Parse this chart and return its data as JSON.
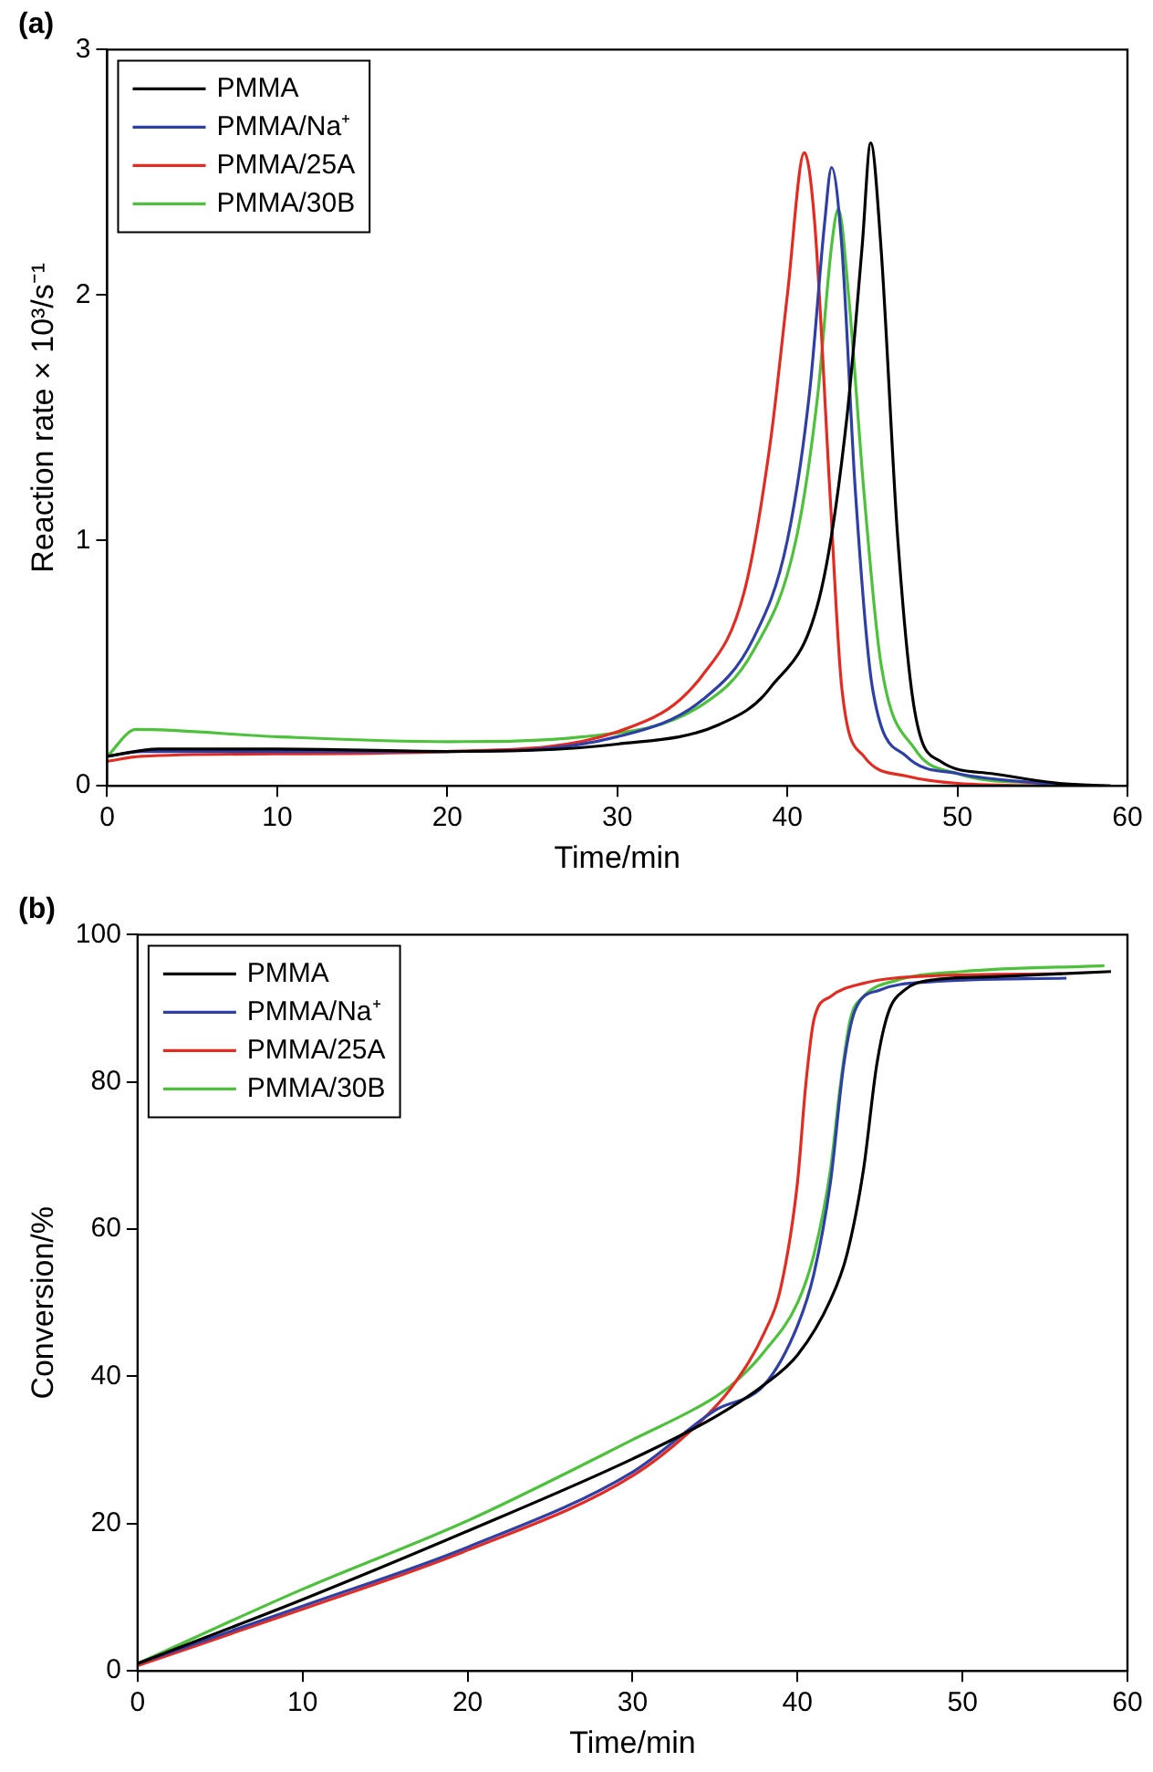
{
  "chart_data": [
    {
      "type": "line",
      "title": "(a)",
      "xlabel": "Time/min",
      "ylabel": "Reaction rate × 10³/s⁻¹",
      "xlim": [
        0,
        60
      ],
      "xticks": [
        0,
        10,
        20,
        30,
        40,
        50,
        60
      ],
      "ylim": [
        0,
        3
      ],
      "yticks": [
        0,
        1,
        2,
        3
      ],
      "grid": false,
      "legend": "top left",
      "marker": "none",
      "line_style": "solid",
      "series": [
        {
          "name": "PMMA",
          "color": "#000000",
          "x": [
            0,
            3,
            10,
            20,
            30,
            36,
            39,
            42,
            43.5,
            44.4,
            44.9,
            45.5,
            46.5,
            47.5,
            49,
            52,
            56,
            59
          ],
          "values": [
            0.12,
            0.15,
            0.15,
            0.14,
            0.17,
            0.25,
            0.4,
            0.8,
            1.5,
            2.2,
            2.62,
            2.2,
            1.0,
            0.3,
            0.1,
            0.05,
            0.01,
            0
          ]
        },
        {
          "name": "PMMA/Na⁺",
          "color": "#2e3fa8",
          "x": [
            0,
            2,
            10,
            20,
            30,
            35,
            38,
            40,
            41.3,
            42.2,
            42.6,
            43.2,
            44,
            45,
            47,
            50,
            55,
            57
          ],
          "values": [
            0.12,
            0.14,
            0.14,
            0.14,
            0.2,
            0.35,
            0.6,
            1.0,
            1.6,
            2.3,
            2.52,
            2.2,
            1.2,
            0.4,
            0.12,
            0.05,
            0.01,
            0
          ]
        },
        {
          "name": "PMMA/25A",
          "color": "#e32b22",
          "x": [
            0,
            2,
            10,
            20,
            30,
            35,
            37.5,
            39,
            40,
            41,
            41.6,
            42.5,
            43.2,
            44.5,
            47,
            50,
            56
          ],
          "values": [
            0.1,
            0.12,
            0.13,
            0.14,
            0.22,
            0.45,
            0.8,
            1.4,
            2.0,
            2.58,
            2.3,
            1.2,
            0.4,
            0.12,
            0.04,
            0.01,
            0
          ]
        },
        {
          "name": "PMMA/30B",
          "color": "#4cc23a",
          "x": [
            0,
            1.7,
            10,
            20,
            28,
            35,
            38,
            40.5,
            41.8,
            42.6,
            43,
            43.6,
            44.5,
            45.5,
            47.5,
            50,
            55,
            58.6
          ],
          "values": [
            0.12,
            0.23,
            0.2,
            0.18,
            0.2,
            0.33,
            0.55,
            1.0,
            1.6,
            2.2,
            2.35,
            2.0,
            1.2,
            0.5,
            0.15,
            0.05,
            0.01,
            0
          ]
        }
      ]
    },
    {
      "type": "line",
      "title": "(b)",
      "xlabel": "Time/min",
      "ylabel": "Conversion/%",
      "xlim": [
        0,
        60
      ],
      "xticks": [
        0,
        10,
        20,
        30,
        40,
        50,
        60
      ],
      "ylim": [
        0,
        100
      ],
      "yticks": [
        0,
        20,
        40,
        60,
        80,
        100
      ],
      "grid": false,
      "legend": "top left",
      "marker": "none",
      "line_style": "solid",
      "series": [
        {
          "name": "PMMA",
          "color": "#000000",
          "x": [
            0,
            10,
            20,
            30,
            35,
            38,
            40,
            42,
            43,
            44,
            44.8,
            45.5,
            46.5,
            48,
            52,
            59
          ],
          "values": [
            1,
            9.7,
            19,
            28.8,
            34.5,
            38.9,
            42.9,
            50.4,
            56.6,
            68.1,
            82.3,
            89.4,
            92.5,
            93.8,
            94.3,
            95
          ]
        },
        {
          "name": "PMMA/Na⁺",
          "color": "#2e3fa8",
          "x": [
            0,
            10,
            20,
            30,
            35,
            38,
            40,
            41,
            42,
            42.8,
            43.5,
            45,
            48,
            56.3
          ],
          "values": [
            1,
            8.8,
            16.8,
            27,
            35.4,
            38.9,
            46.9,
            54,
            66.4,
            82.3,
            89.8,
            92.5,
            93.6,
            94.1
          ]
        },
        {
          "name": "PMMA/25A",
          "color": "#e32b22",
          "x": [
            0,
            10,
            20,
            30,
            34,
            36,
            38,
            39,
            40,
            40.5,
            41,
            42,
            44,
            48,
            56
          ],
          "values": [
            0.7,
            8.4,
            16.4,
            26.5,
            33.6,
            38.5,
            46,
            52.2,
            66.4,
            79.6,
            88.5,
            91.6,
            93.4,
            94.4,
            94.7
          ]
        },
        {
          "name": "PMMA/30B",
          "color": "#4cc23a",
          "x": [
            0,
            10,
            20,
            30,
            35,
            36.5,
            38,
            40,
            41,
            42,
            42.6,
            43.2,
            44,
            46,
            50,
            58.6
          ],
          "values": [
            1,
            11.1,
            20.4,
            31.4,
            37.2,
            39.8,
            43.4,
            50,
            56.6,
            68.1,
            79.6,
            88.5,
            91.6,
            93.8,
            95,
            95.8
          ]
        }
      ]
    }
  ]
}
